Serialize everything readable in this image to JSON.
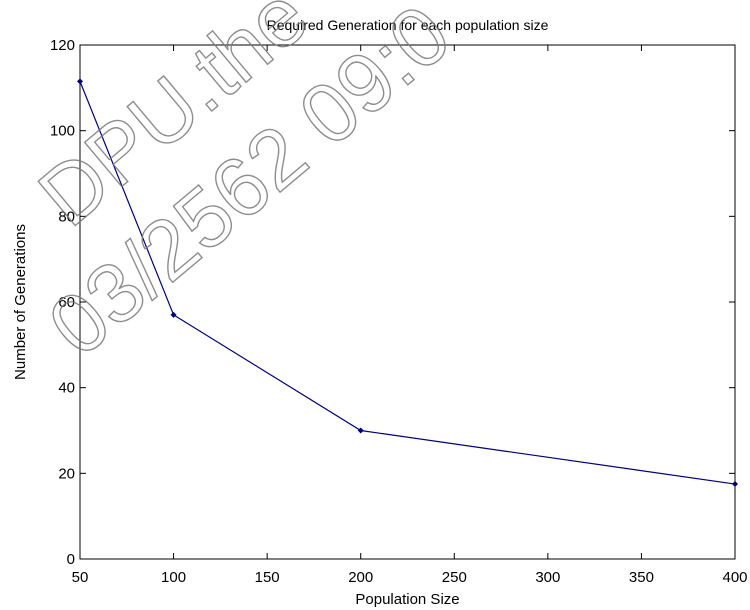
{
  "chart_data": {
    "type": "line",
    "title": "Required Generation for each population size",
    "xlabel": "Population Size",
    "ylabel": "Number of Generations",
    "xlim": [
      50,
      400
    ],
    "ylim": [
      0,
      120
    ],
    "xticks": [
      50,
      100,
      150,
      200,
      250,
      300,
      350,
      400
    ],
    "yticks": [
      0,
      20,
      40,
      60,
      80,
      100,
      120
    ],
    "x": [
      50,
      100,
      200,
      400
    ],
    "series": [
      {
        "values": [
          111.5,
          57,
          30,
          17.5
        ],
        "color": "#00007f"
      }
    ],
    "grid": false,
    "legend": "none"
  },
  "watermark": {
    "line1": "DPU.the",
    "line2": "03/2562 09:0"
  }
}
